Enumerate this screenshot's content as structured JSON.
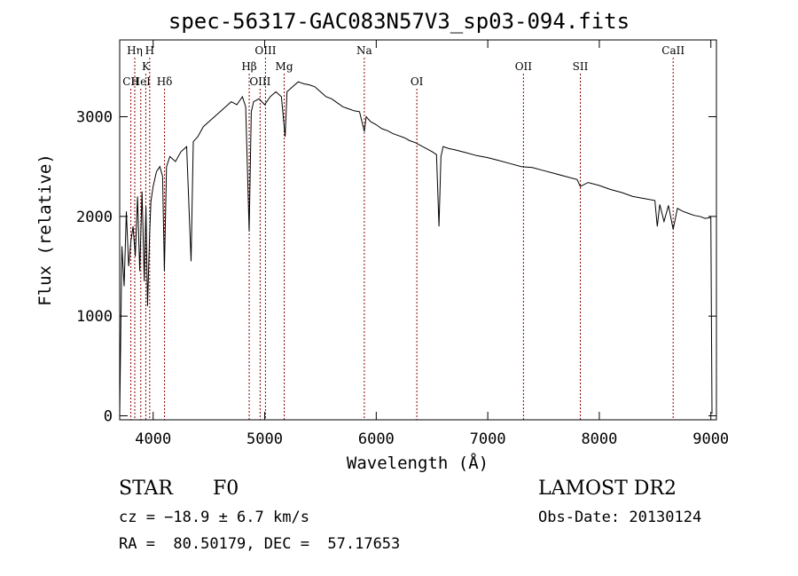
{
  "chart_data": {
    "type": "line",
    "title": "spec-56317-GAC083N57V3_sp03-094.fits",
    "xlabel": "Wavelength (Å)",
    "ylabel": "Flux (relative)",
    "xlim": [
      3700,
      9050
    ],
    "ylim": [
      -40,
      3770
    ],
    "xticks": [
      4000,
      5000,
      6000,
      7000,
      8000,
      9000
    ],
    "xtick_labels": [
      "4000",
      "5000",
      "6000",
      "7000",
      "8000",
      "9000"
    ],
    "yticks": [
      0,
      1000,
      2000,
      3000
    ],
    "ytick_labels": [
      "0",
      "1000",
      "2000",
      "3000"
    ],
    "line_color": "#000000",
    "marker_color": "#8b0000",
    "series": [
      {
        "x": [
          3700,
          3720,
          3740,
          3760,
          3780,
          3800,
          3820,
          3840,
          3860,
          3880,
          3900,
          3920,
          3935,
          3950,
          3968,
          3980,
          4000,
          4030,
          4060,
          4085,
          4101,
          4120,
          4150,
          4200,
          4250,
          4300,
          4340,
          4360,
          4400,
          4450,
          4500,
          4550,
          4600,
          4650,
          4700,
          4750,
          4800,
          4830,
          4861,
          4880,
          4900,
          4950,
          5000,
          5050,
          5100,
          5150,
          5183,
          5200,
          5250,
          5300,
          5350,
          5400,
          5450,
          5500,
          5550,
          5600,
          5650,
          5700,
          5750,
          5800,
          5850,
          5893,
          5910,
          5950,
          6000,
          6050,
          6100,
          6150,
          6200,
          6250,
          6300,
          6350,
          6400,
          6450,
          6500,
          6540,
          6563,
          6580,
          6600,
          6650,
          6700,
          6800,
          6900,
          7000,
          7100,
          7200,
          7300,
          7400,
          7500,
          7600,
          7700,
          7800,
          7830,
          7900,
          8000,
          8100,
          8200,
          8300,
          8400,
          8498,
          8520,
          8542,
          8580,
          8620,
          8662,
          8700,
          8750,
          8800,
          8850,
          8900,
          8950,
          9000,
          9010
        ],
        "y": [
          20,
          1700,
          1300,
          2050,
          1500,
          1750,
          1900,
          1600,
          2200,
          1450,
          2250,
          1350,
          2100,
          1100,
          1800,
          2150,
          2300,
          2450,
          2500,
          2400,
          1450,
          2500,
          2600,
          2550,
          2650,
          2700,
          1550,
          2750,
          2800,
          2900,
          2950,
          3000,
          3050,
          3100,
          3150,
          3120,
          3200,
          3100,
          1850,
          3050,
          3150,
          3180,
          3120,
          3200,
          3250,
          3200,
          2800,
          3250,
          3300,
          3350,
          3330,
          3320,
          3300,
          3250,
          3200,
          3180,
          3140,
          3100,
          3080,
          3060,
          3050,
          2850,
          3000,
          2950,
          2920,
          2880,
          2860,
          2830,
          2810,
          2790,
          2760,
          2740,
          2710,
          2680,
          2650,
          2620,
          1900,
          2600,
          2700,
          2680,
          2670,
          2640,
          2610,
          2590,
          2560,
          2530,
          2500,
          2490,
          2460,
          2430,
          2400,
          2370,
          2300,
          2340,
          2310,
          2270,
          2240,
          2200,
          2180,
          2160,
          1900,
          2120,
          1950,
          2110,
          1870,
          2080,
          2050,
          2030,
          2010,
          2000,
          1980,
          1990,
          20
        ]
      }
    ],
    "line_markers": [
      {
        "label": "CII",
        "x": 3800,
        "row": 3
      },
      {
        "label": "Hη",
        "x": 3835,
        "row": 1
      },
      {
        "label": "HeI",
        "x": 3889,
        "row": 3
      },
      {
        "label": "K",
        "x": 3934,
        "row": 2
      },
      {
        "label": "H",
        "x": 3969,
        "row": 1
      },
      {
        "label": "Hδ",
        "x": 4102,
        "row": 3
      },
      {
        "label": "Hβ",
        "x": 4861,
        "row": 2
      },
      {
        "label": "OIII",
        "x": 4959,
        "row": 3
      },
      {
        "label": "OIII",
        "x": 5007,
        "row": 1
      },
      {
        "label": "Mg",
        "x": 5175,
        "row": 2
      },
      {
        "label": "Na",
        "x": 5893,
        "row": 1
      },
      {
        "label": "OI",
        "x": 6364,
        "row": 3
      },
      {
        "label": "OII",
        "x": 7320,
        "row": 2
      },
      {
        "label": "SII",
        "x": 7830,
        "row": 2
      },
      {
        "label": "CaII",
        "x": 8662,
        "row": 1
      }
    ]
  },
  "footer": {
    "object_class": "STAR",
    "subclass": "F0",
    "redshift_text": "cz = −18.9 ± 6.7 km/s",
    "coords_text": "RA =  80.50179, DEC =  57.17653",
    "survey": "LAMOST DR2",
    "obs_date": "Obs-Date: 20130124"
  }
}
